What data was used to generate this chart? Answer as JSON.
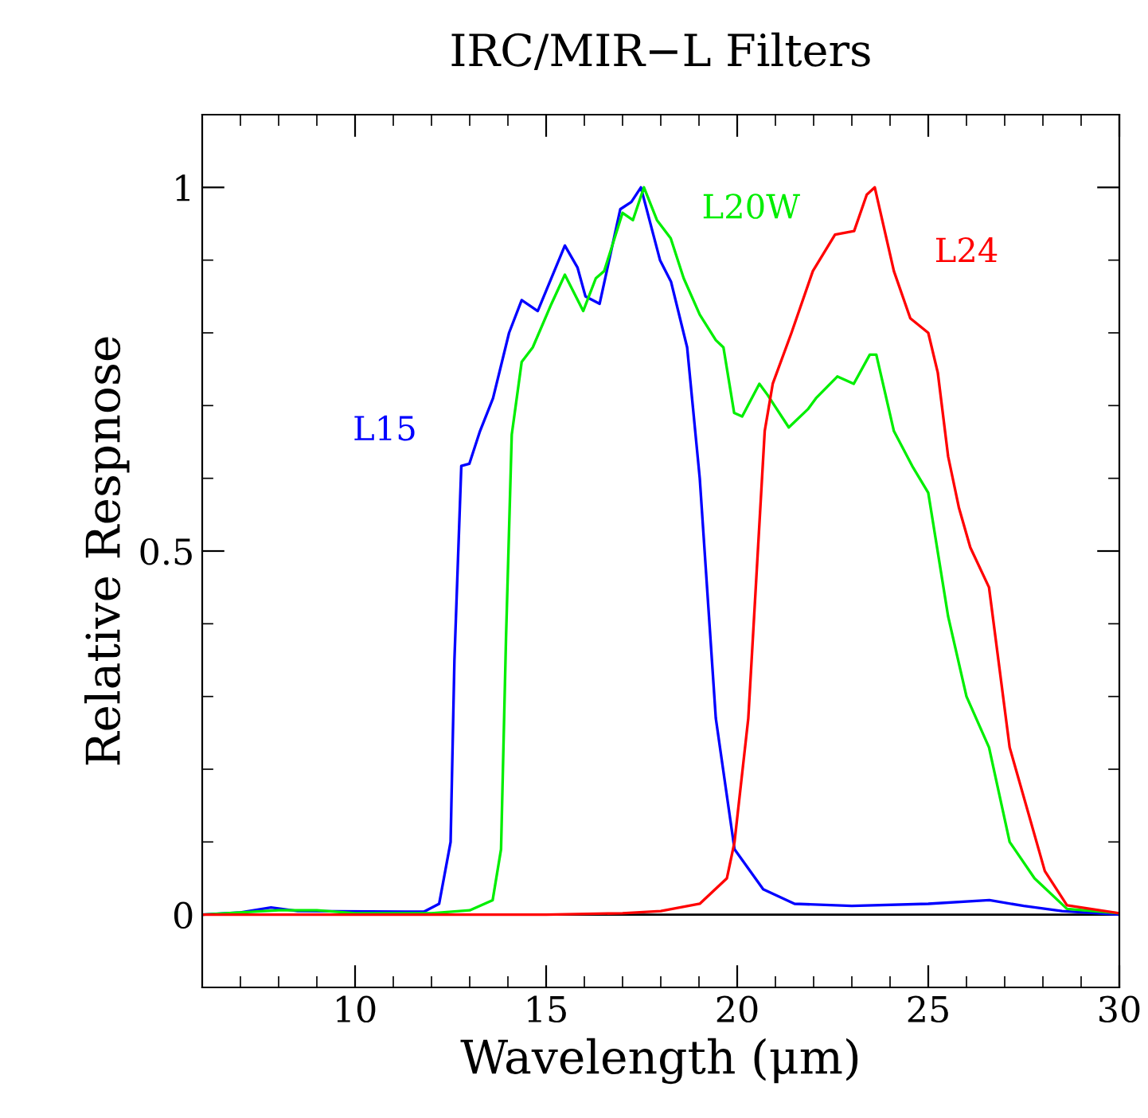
{
  "chart_data": {
    "type": "line",
    "title": "IRC/MIR−L Filters",
    "xlabel": "Wavelength (μm)",
    "ylabel": "Relative Respnose",
    "xlim": [
      6,
      30
    ],
    "ylim": [
      -0.1,
      1.1
    ],
    "xticks": [
      10,
      15,
      20,
      25,
      30
    ],
    "yticks": [
      0,
      0.5,
      1
    ],
    "grid": false,
    "legend": false,
    "ref_lines": [
      {
        "axis": "y",
        "value": 0,
        "color": "#000000"
      }
    ],
    "series": [
      {
        "name": "L15",
        "color": "#0000ff",
        "x": [
          6,
          7,
          7.8,
          8.5,
          11.8,
          12.2,
          12.5,
          12.6,
          12.78,
          12.99,
          13.27,
          13.61,
          14.03,
          14.36,
          14.78,
          15.49,
          15.82,
          16.03,
          16.4,
          16.94,
          17.23,
          17.48,
          17.98,
          18.27,
          18.69,
          19.02,
          19.44,
          19.93,
          20.68,
          21.5,
          23,
          25,
          26.6,
          27.5,
          28.5,
          30
        ],
        "values": [
          0,
          0.003,
          0.01,
          0.005,
          0.004,
          0.015,
          0.1,
          0.35,
          0.617,
          0.62,
          0.665,
          0.71,
          0.8,
          0.845,
          0.83,
          0.92,
          0.89,
          0.85,
          0.84,
          0.97,
          0.98,
          1.0,
          0.9,
          0.87,
          0.78,
          0.6,
          0.27,
          0.09,
          0.035,
          0.015,
          0.012,
          0.015,
          0.02,
          0.012,
          0.005,
          0
        ]
      },
      {
        "name": "L20W",
        "color": "#00ee00",
        "x": [
          6,
          8,
          9,
          10,
          12,
          13,
          13.6,
          13.82,
          13.95,
          14.1,
          14.36,
          14.65,
          15.14,
          15.49,
          15.97,
          16.3,
          16.52,
          17.0,
          17.27,
          17.56,
          17.9,
          18.26,
          18.6,
          19.02,
          19.44,
          19.64,
          19.92,
          20.13,
          20.58,
          20.79,
          21.35,
          21.85,
          22.06,
          22.62,
          23.05,
          23.47,
          23.64,
          24.1,
          24.6,
          25.0,
          25.52,
          26.0,
          26.59,
          27.13,
          27.78,
          28.63,
          30
        ],
        "values": [
          0,
          0.006,
          0.006,
          0.002,
          0.002,
          0.006,
          0.02,
          0.09,
          0.38,
          0.66,
          0.76,
          0.78,
          0.84,
          0.88,
          0.83,
          0.875,
          0.885,
          0.965,
          0.955,
          1.0,
          0.955,
          0.93,
          0.875,
          0.825,
          0.79,
          0.78,
          0.69,
          0.685,
          0.73,
          0.715,
          0.67,
          0.695,
          0.71,
          0.74,
          0.73,
          0.77,
          0.77,
          0.665,
          0.615,
          0.58,
          0.41,
          0.3,
          0.23,
          0.1,
          0.05,
          0.008,
          0.002
        ]
      },
      {
        "name": "L24",
        "color": "#ff0000",
        "x": [
          6,
          10,
          15,
          17,
          18,
          19.02,
          19.73,
          19.93,
          20.29,
          20.72,
          20.93,
          21.42,
          21.98,
          22.56,
          23.06,
          23.39,
          23.6,
          24.1,
          24.53,
          25.0,
          25.25,
          25.52,
          25.8,
          26.1,
          26.59,
          27.13,
          28.05,
          28.63,
          30
        ],
        "values": [
          0,
          0,
          0,
          0.002,
          0.005,
          0.015,
          0.05,
          0.1,
          0.27,
          0.665,
          0.73,
          0.8,
          0.885,
          0.935,
          0.94,
          0.99,
          1.0,
          0.885,
          0.82,
          0.8,
          0.745,
          0.63,
          0.56,
          0.505,
          0.45,
          0.23,
          0.06,
          0.013,
          0.002
        ]
      }
    ]
  }
}
